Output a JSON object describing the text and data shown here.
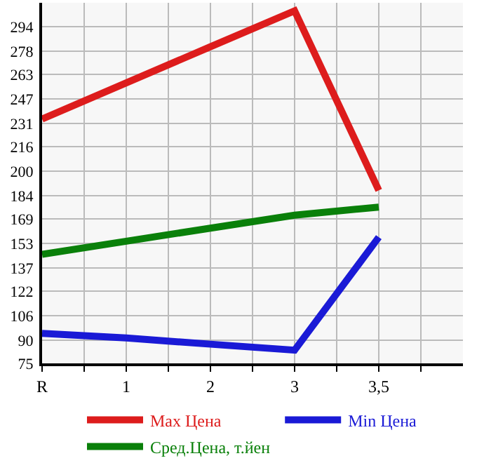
{
  "chart_data": {
    "type": "line",
    "categories": [
      "R",
      "1",
      "2",
      "3",
      "3,5",
      null
    ],
    "series": [
      {
        "name": "Max Цена",
        "color": "#dd1c1c",
        "values": [
          234,
          257.5,
          281,
          304.4,
          187.6,
          null
        ]
      },
      {
        "name": "Min Цена",
        "color": "#1a1ad6",
        "values": [
          94.5,
          91.5,
          87.5,
          83.6,
          157.1,
          null
        ]
      },
      {
        "name": "Сред.Цена, т.йен",
        "color": "#0a800a",
        "values": [
          146,
          154.5,
          163,
          171.4,
          176.7,
          null
        ]
      }
    ],
    "ylim": [
      75,
      309.6
    ],
    "yticks": [
      75,
      90,
      106,
      122,
      137,
      153,
      169,
      184,
      200,
      216,
      231,
      247,
      263,
      278,
      294
    ],
    "grid": true,
    "legend": "bottom",
    "marker": "none",
    "line_style": "solid"
  }
}
